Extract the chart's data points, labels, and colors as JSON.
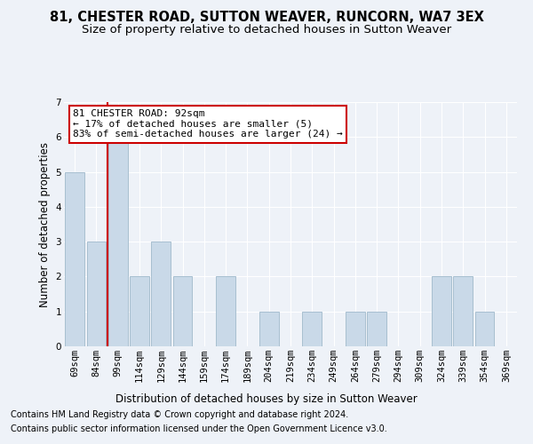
{
  "title": "81, CHESTER ROAD, SUTTON WEAVER, RUNCORN, WA7 3EX",
  "subtitle": "Size of property relative to detached houses in Sutton Weaver",
  "xlabel": "Distribution of detached houses by size in Sutton Weaver",
  "ylabel": "Number of detached properties",
  "categories": [
    "69sqm",
    "84sqm",
    "99sqm",
    "114sqm",
    "129sqm",
    "144sqm",
    "159sqm",
    "174sqm",
    "189sqm",
    "204sqm",
    "219sqm",
    "234sqm",
    "249sqm",
    "264sqm",
    "279sqm",
    "294sqm",
    "309sqm",
    "324sqm",
    "339sqm",
    "354sqm",
    "369sqm"
  ],
  "values": [
    5,
    3,
    6,
    2,
    3,
    2,
    0,
    2,
    0,
    1,
    0,
    1,
    0,
    1,
    1,
    0,
    0,
    2,
    2,
    1,
    0
  ],
  "bar_color": "#c9d9e8",
  "bar_edge_color": "#a8bfd0",
  "marker_line_color": "#cc0000",
  "annotation_text": "81 CHESTER ROAD: 92sqm\n← 17% of detached houses are smaller (5)\n83% of semi-detached houses are larger (24) →",
  "annotation_box_color": "#ffffff",
  "annotation_box_edge_color": "#cc0000",
  "ylim": [
    0,
    7
  ],
  "yticks": [
    0,
    1,
    2,
    3,
    4,
    5,
    6,
    7
  ],
  "footnote1": "Contains HM Land Registry data © Crown copyright and database right 2024.",
  "footnote2": "Contains public sector information licensed under the Open Government Licence v3.0.",
  "bg_color": "#eef2f8",
  "plot_bg_color": "#eef2f8",
  "title_fontsize": 10.5,
  "subtitle_fontsize": 9.5,
  "axis_label_fontsize": 8.5,
  "tick_fontsize": 7.5,
  "annotation_fontsize": 8,
  "footnote_fontsize": 7
}
